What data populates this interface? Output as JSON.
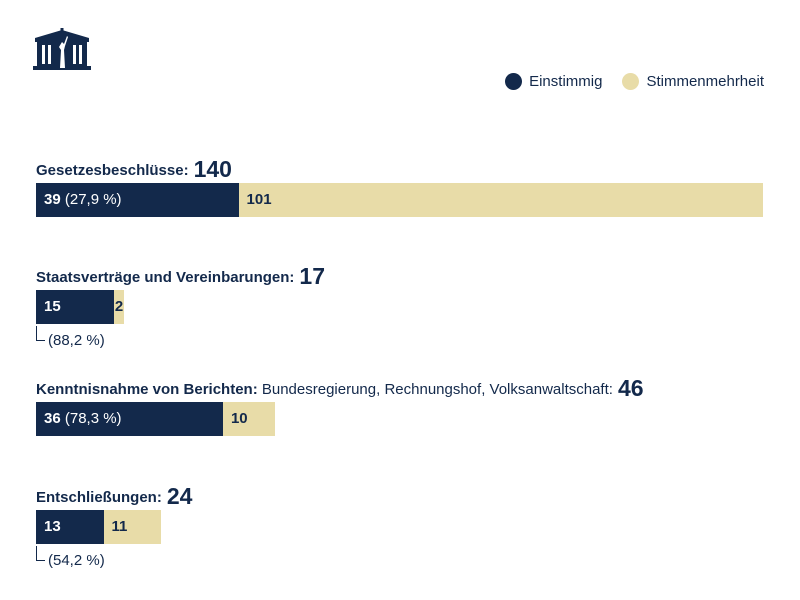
{
  "colors": {
    "einstimmig": "#13294b",
    "mehrheit": "#e8dca8"
  },
  "legend": [
    {
      "label": "Einstimmig"
    },
    {
      "label": "Stimmenmehrheit"
    }
  ],
  "chart_data": {
    "type": "bar",
    "orientation": "horizontal",
    "stacked": true,
    "scale_max": 140,
    "categories": [
      {
        "title": "Gesetzesbeschlüsse:",
        "subtitle": "",
        "total": "140",
        "einstimmig": 39,
        "mehrheit": 101,
        "pct": "(27,9 %)",
        "pct_below": false
      },
      {
        "title": "Staatsverträge und Vereinbarungen:",
        "subtitle": "",
        "total": "17",
        "einstimmig": 15,
        "mehrheit": 2,
        "pct": "(88,2 %)",
        "pct_below": true
      },
      {
        "title": "Kenntnisnahme von Berichten:",
        "subtitle": " Bundesregierung, Rechnungshof, Volksanwaltschaft:",
        "total": "46",
        "einstimmig": 36,
        "mehrheit": 10,
        "pct": "(78,3 %)",
        "pct_below": false
      },
      {
        "title": "Entschließungen:",
        "subtitle": "",
        "total": "24",
        "einstimmig": 13,
        "mehrheit": 11,
        "pct": "(54,2 %)",
        "pct_below": true
      }
    ],
    "series": [
      {
        "name": "Einstimmig"
      },
      {
        "name": "Stimmenmehrheit"
      }
    ]
  }
}
